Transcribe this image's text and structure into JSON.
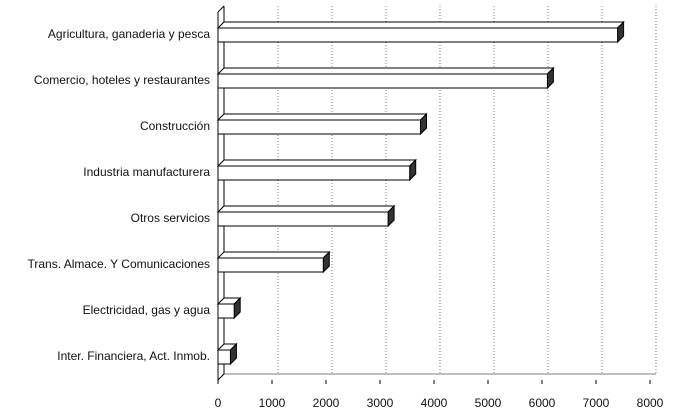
{
  "chart_data": {
    "type": "bar",
    "orientation": "horizontal",
    "categories": [
      "Agricultura, ganaderia y pesca",
      "Comercio, hoteles y restaurantes",
      "Construcción",
      "Industria manufacturera",
      "Otros servicios",
      "Trans. Almace. Y Comunicaciones",
      "Electricidad, gas y agua",
      "Inter. Financiera, Act. Inmob."
    ],
    "values": [
      7400,
      6100,
      3750,
      3550,
      3150,
      1950,
      300,
      230
    ],
    "color": "#ffffff",
    "xlim": [
      0,
      8000
    ],
    "xticks": [
      0,
      1000,
      2000,
      3000,
      4000,
      5000,
      6000,
      7000,
      8000
    ],
    "grid": true
  }
}
